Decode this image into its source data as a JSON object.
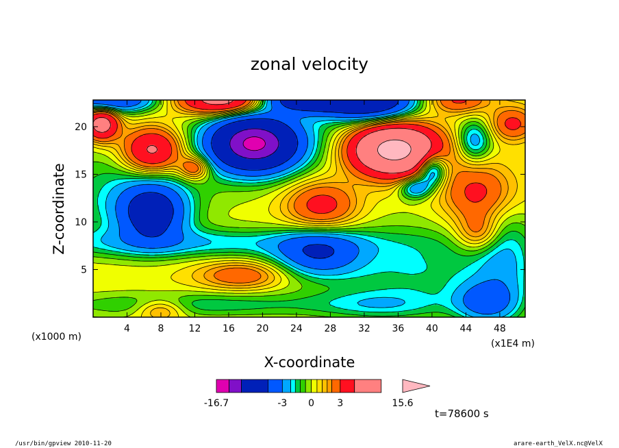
{
  "chart_data": {
    "type": "heatmap",
    "title": "zonal velocity",
    "xlabel": "X-coordinate",
    "ylabel": "Z-coordinate",
    "xunit": "(x1E4 m)",
    "yunit": "(x1000 m)",
    "xlim": [
      0,
      51
    ],
    "ylim": [
      0,
      22.8
    ],
    "x_ticks": [
      "4",
      "8",
      "12",
      "16",
      "20",
      "24",
      "28",
      "32",
      "36",
      "40",
      "44",
      "48"
    ],
    "y_ticks": [
      "5",
      "10",
      "15",
      "20"
    ],
    "x_tick_values": [
      4,
      8,
      12,
      16,
      20,
      24,
      28,
      32,
      36,
      40,
      44,
      48
    ],
    "y_tick_values": [
      5,
      10,
      15,
      20
    ],
    "background_level": 0.5,
    "features": [
      {
        "x": 19.0,
        "z": 18.2,
        "sx": 3.4,
        "sy": 1.9,
        "amp": -13.0
      },
      {
        "x": 24.5,
        "z": 22.9,
        "sx": 5.0,
        "sy": 1.0,
        "amp": -9.0
      },
      {
        "x": 33.0,
        "z": 22.6,
        "sx": 3.5,
        "sy": 1.4,
        "amp": -7.0
      },
      {
        "x": 2.0,
        "z": 22.8,
        "sx": 4.0,
        "sy": 0.9,
        "amp": -5.5
      },
      {
        "x": 16.5,
        "z": 22.8,
        "sx": 4.5,
        "sy": 1.1,
        "amp": 8.5
      },
      {
        "x": 35.5,
        "z": 17.6,
        "sx": 3.6,
        "sy": 1.9,
        "amp": 12.0
      },
      {
        "x": 7.0,
        "z": 17.5,
        "sx": 2.5,
        "sy": 1.7,
        "amp": 6.0
      },
      {
        "x": 1.0,
        "z": 20.3,
        "sx": 1.4,
        "sy": 1.2,
        "amp": 6.5
      },
      {
        "x": 12.0,
        "z": 15.7,
        "sx": 1.3,
        "sy": 0.9,
        "amp": 3.5
      },
      {
        "x": 7.0,
        "z": 11.0,
        "sx": 2.6,
        "sy": 2.0,
        "amp": -6.5
      },
      {
        "x": 26.5,
        "z": 6.7,
        "sx": 3.4,
        "sy": 1.6,
        "amp": -4.5
      },
      {
        "x": 40.0,
        "z": 15.5,
        "sx": 1.2,
        "sy": 1.2,
        "amp": -5.0
      },
      {
        "x": 38.0,
        "z": 13.6,
        "sx": 1.3,
        "sy": 0.8,
        "amp": -3.5
      },
      {
        "x": 45.0,
        "z": 18.5,
        "sx": 1.4,
        "sy": 1.5,
        "amp": -3.0
      },
      {
        "x": 46.2,
        "z": 1.6,
        "sx": 2.4,
        "sy": 1.4,
        "amp": -3.5
      },
      {
        "x": 27.0,
        "z": 11.8,
        "sx": 3.0,
        "sy": 1.8,
        "amp": 3.5
      },
      {
        "x": 45.5,
        "z": 13.0,
        "sx": 3.0,
        "sy": 2.2,
        "amp": 3.2
      },
      {
        "x": 45.5,
        "z": 8.8,
        "sx": 1.8,
        "sy": 1.4,
        "amp": 2.5
      },
      {
        "x": 17.5,
        "z": 4.4,
        "sx": 3.5,
        "sy": 1.0,
        "amp": 2.5
      },
      {
        "x": 49.5,
        "z": 20.3,
        "sx": 1.8,
        "sy": 1.2,
        "amp": 3.0
      },
      {
        "x": 8.0,
        "z": 0.8,
        "sx": 2.0,
        "sy": 0.8,
        "amp": 2.2
      },
      {
        "x": 43.0,
        "z": 22.8,
        "sx": 2.6,
        "sy": 1.0,
        "amp": 3.0
      },
      {
        "x": 12.0,
        "z": 7.8,
        "sx": 14.0,
        "sy": 1.1,
        "amp": -2.2
      },
      {
        "x": 4.0,
        "z": 12.5,
        "sx": 6.0,
        "sy": 3.5,
        "amp": -2.0
      },
      {
        "x": 38.0,
        "z": 5.0,
        "sx": 9.0,
        "sy": 3.5,
        "amp": -2.0
      },
      {
        "x": 12.0,
        "z": 1.3,
        "sx": 12.0,
        "sy": 1.0,
        "amp": -1.8
      },
      {
        "x": 34.0,
        "z": 1.3,
        "sx": 5.0,
        "sy": 1.0,
        "amp": -1.3
      },
      {
        "x": 22.0,
        "z": 19.0,
        "sx": 12.0,
        "sy": 4.0,
        "amp": -1.5
      },
      {
        "x": 48.5,
        "z": 6.0,
        "sx": 2.5,
        "sy": 4.5,
        "amp": -2.0
      }
    ],
    "legend": {
      "ticks": [
        "-16.7",
        "-3",
        "0",
        "3",
        "15.6"
      ],
      "levels": [
        -16.7,
        -13.0,
        -10.0,
        -5.0,
        -3.0,
        -2.0,
        -1.5,
        -1.0,
        -0.5,
        0,
        0.5,
        1.0,
        1.5,
        2.0,
        3.0,
        5.0,
        10.0,
        15.6
      ],
      "colors": [
        "#e000b0",
        "#8010c8",
        "#0020b8",
        "#0058ff",
        "#00a8ff",
        "#00ffff",
        "#00c840",
        "#30d000",
        "#90e800",
        "#f0ff00",
        "#ffe000",
        "#ffc000",
        "#ffa000",
        "#ff6800",
        "#ff1020",
        "#ff8080",
        "#ffb8c0"
      ]
    },
    "time_label": "t=78600 s"
  },
  "footer": {
    "left": "/usr/bin/gpview   2010-11-20",
    "right": "arare-earth_VelX.nc@VelX"
  }
}
